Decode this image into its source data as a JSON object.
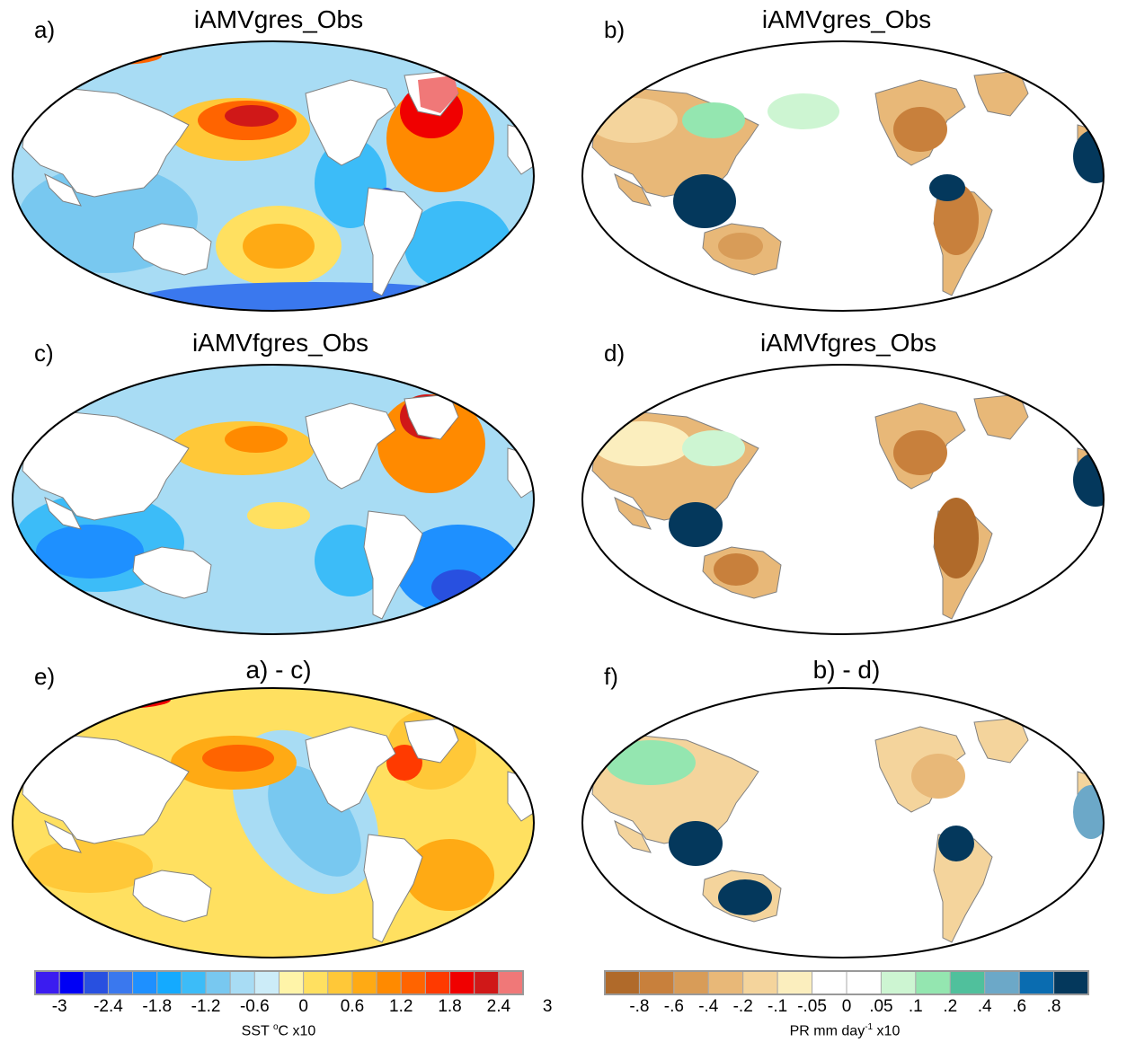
{
  "panels": [
    {
      "letter": "a)",
      "title": "iAMVgres_Obs",
      "kind": "sst"
    },
    {
      "letter": "b)",
      "title": "iAMVgres_Obs",
      "kind": "pr"
    },
    {
      "letter": "c)",
      "title": "iAMVfgres_Obs",
      "kind": "sst"
    },
    {
      "letter": "d)",
      "title": "iAMVfgres_Obs",
      "kind": "pr"
    },
    {
      "letter": "e)",
      "title": "a) - c)",
      "kind": "sst"
    },
    {
      "letter": "f)",
      "title": "b) - d)",
      "kind": "pr"
    }
  ],
  "sst_colorbar": {
    "title_main": "SST ",
    "title_sup": "o",
    "title_rest": "C x10",
    "labels": [
      "-3",
      "-2.4",
      "-1.8",
      "-1.2",
      "-0.6",
      "0",
      "0.6",
      "1.2",
      "1.8",
      "2.4",
      "3"
    ],
    "colors": [
      "#3b1cf0",
      "#0000f5",
      "#2850e0",
      "#3a78ee",
      "#1e90ff",
      "#14aaff",
      "#3cbcf8",
      "#78c8f0",
      "#a8dcf4",
      "#ccecf8",
      "#fff4a8",
      "#ffe060",
      "#ffc838",
      "#ffaa14",
      "#ff8a00",
      "#ff6400",
      "#ff3a00",
      "#f00000",
      "#d01818",
      "#f07878"
    ]
  },
  "pr_colorbar": {
    "title_main": "PR mm day",
    "title_sup": "-1",
    "title_rest": " x10",
    "labels": [
      "-.8",
      "-.6",
      "-.4",
      "-.2",
      "-.1",
      "-.05",
      "0",
      ".05",
      ".1",
      ".2",
      ".4",
      ".6",
      ".8"
    ],
    "colors": [
      "#b06a2a",
      "#c8803c",
      "#d89c58",
      "#e8b878",
      "#f4d49c",
      "#fbeebe",
      "#ffffff",
      "#ffffff",
      "#cdf5d2",
      "#94e6b0",
      "#50c09c",
      "#6ca8c8",
      "#0a6cb0",
      "#04385c"
    ]
  }
}
